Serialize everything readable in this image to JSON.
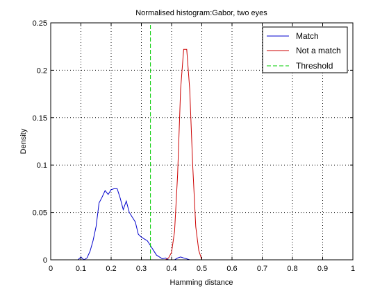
{
  "chart_data": {
    "type": "line",
    "title": "Normalised histogram:Gabor, two eyes",
    "xlabel": "Hamming distance",
    "ylabel": "Density",
    "xlim": [
      0,
      1
    ],
    "ylim": [
      0,
      0.25
    ],
    "xticks": [
      0,
      0.1,
      0.2,
      0.3,
      0.4,
      0.5,
      0.6,
      0.7,
      0.8,
      0.9,
      1
    ],
    "yticks": [
      0,
      0.05,
      0.1,
      0.15,
      0.2,
      0.25
    ],
    "xtick_labels": [
      "0",
      "0.1",
      "0.2",
      "0.3",
      "0.4",
      "0.5",
      "0.6",
      "0.7",
      "0.8",
      "0.9",
      "1"
    ],
    "ytick_labels": [
      "0",
      "0.05",
      "0.1",
      "0.15",
      "0.2",
      "0.25"
    ],
    "grid": true,
    "legend_position": "top-right",
    "series": [
      {
        "name": "Match",
        "color": "#0000cc",
        "style": "solid",
        "x": [
          0,
          0.09,
          0.1,
          0.11,
          0.12,
          0.13,
          0.14,
          0.15,
          0.16,
          0.17,
          0.18,
          0.19,
          0.2,
          0.21,
          0.22,
          0.23,
          0.24,
          0.25,
          0.26,
          0.27,
          0.28,
          0.29,
          0.3,
          0.31,
          0.32,
          0.33,
          0.34,
          0.35,
          0.36,
          0.37,
          0.38,
          0.39,
          0.4,
          0.41,
          0.42,
          0.43,
          0.44,
          0.45,
          0.46,
          0.47,
          0.48,
          1
        ],
        "y": [
          0,
          0,
          0.003,
          0.0,
          0.002,
          0.009,
          0.02,
          0.035,
          0.06,
          0.066,
          0.073,
          0.069,
          0.074,
          0.075,
          0.075,
          0.065,
          0.053,
          0.062,
          0.05,
          0.045,
          0.04,
          0.027,
          0.024,
          0.022,
          0.02,
          0.015,
          0.01,
          0.005,
          0.003,
          0.001,
          0.002,
          0.0,
          0.0,
          0.0,
          0.002,
          0.003,
          0.002,
          0.001,
          0.0,
          0.0,
          0.0,
          0.0
        ]
      },
      {
        "name": "Not a match",
        "color": "#cc0000",
        "style": "solid",
        "x": [
          0,
          0.38,
          0.39,
          0.4,
          0.41,
          0.42,
          0.43,
          0.44,
          0.45,
          0.46,
          0.47,
          0.48,
          0.49,
          0.5,
          1
        ],
        "y": [
          0,
          0,
          0.002,
          0.008,
          0.03,
          0.09,
          0.18,
          0.222,
          0.222,
          0.18,
          0.1,
          0.035,
          0.01,
          0.0,
          0
        ]
      },
      {
        "name": "Threshold",
        "color": "#00cc00",
        "style": "dashed",
        "x": [
          0.33,
          0.33
        ],
        "y": [
          0,
          0.25
        ]
      }
    ]
  }
}
